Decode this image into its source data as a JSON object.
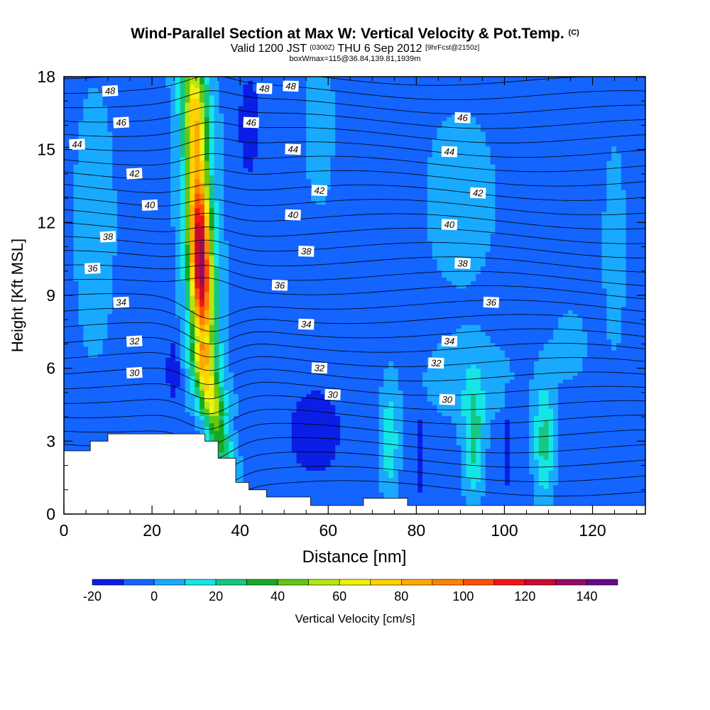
{
  "title": {
    "main": "Wind-Parallel Section at Max W: Vertical Velocity & Pot.Temp.",
    "copyright": "(C)",
    "valid_prefix": "Valid 1200 JST",
    "utc": "(0300Z)",
    "valid_date": "THU 6 Sep 2012",
    "forecast": "[9hrFcst@2150z]",
    "box": "boxWmax=115@36.84,139.81,1939m"
  },
  "chart_data": {
    "type": "heatmap",
    "xlabel": "Distance [nm]",
    "ylabel": "Height [Kft MSL]",
    "xlim": [
      0,
      132
    ],
    "ylim": [
      0,
      18
    ],
    "xticks": [
      0,
      20,
      40,
      60,
      80,
      100,
      120
    ],
    "yticks": [
      0,
      3,
      6,
      9,
      12,
      15,
      18
    ],
    "grid": false,
    "colorbar": {
      "label": "Vertical Velocity [cm/s]",
      "levels": [
        -20,
        -10,
        0,
        10,
        20,
        30,
        40,
        50,
        60,
        70,
        80,
        90,
        100,
        110,
        120,
        130,
        140,
        150
      ],
      "tick_labels": [
        "-20",
        "0",
        "20",
        "40",
        "60",
        "80",
        "100",
        "120",
        "140"
      ],
      "colors": [
        "#0a1ee6",
        "#1464ff",
        "#19aaff",
        "#14e6e6",
        "#14c882",
        "#14aa28",
        "#64c814",
        "#b4e614",
        "#f0f00a",
        "#ffd200",
        "#ffaa00",
        "#ff8200",
        "#ff5000",
        "#f01414",
        "#c80a32",
        "#960a64",
        "#640a8c"
      ]
    },
    "isentropes": {
      "name": "Pot.Temp.",
      "levels": [
        30,
        32,
        34,
        36,
        38,
        40,
        42,
        44,
        46,
        48
      ],
      "labels": [
        {
          "text": "48",
          "x": 10.5,
          "y": 17.4
        },
        {
          "text": "48",
          "x": 45.5,
          "y": 17.5
        },
        {
          "text": "48",
          "x": 51.5,
          "y": 17.6
        },
        {
          "text": "46",
          "x": 13,
          "y": 16.1
        },
        {
          "text": "46",
          "x": 42.5,
          "y": 16.1
        },
        {
          "text": "46",
          "x": 90.5,
          "y": 16.3
        },
        {
          "text": "44",
          "x": 3,
          "y": 15.2
        },
        {
          "text": "44",
          "x": 52,
          "y": 15.0
        },
        {
          "text": "44",
          "x": 87.5,
          "y": 14.9
        },
        {
          "text": "42",
          "x": 16,
          "y": 14.0
        },
        {
          "text": "42",
          "x": 58,
          "y": 13.3
        },
        {
          "text": "42",
          "x": 94,
          "y": 13.2
        },
        {
          "text": "40",
          "x": 19.5,
          "y": 12.7
        },
        {
          "text": "40",
          "x": 52,
          "y": 12.3
        },
        {
          "text": "40",
          "x": 87.5,
          "y": 11.9
        },
        {
          "text": "38",
          "x": 10,
          "y": 11.4
        },
        {
          "text": "38",
          "x": 55,
          "y": 10.8
        },
        {
          "text": "38",
          "x": 90.5,
          "y": 10.3
        },
        {
          "text": "36",
          "x": 6.5,
          "y": 10.1
        },
        {
          "text": "36",
          "x": 49,
          "y": 9.4
        },
        {
          "text": "36",
          "x": 97,
          "y": 8.7
        },
        {
          "text": "34",
          "x": 13,
          "y": 8.7
        },
        {
          "text": "34",
          "x": 55,
          "y": 7.8
        },
        {
          "text": "34",
          "x": 87.5,
          "y": 7.1
        },
        {
          "text": "32",
          "x": 16,
          "y": 7.1
        },
        {
          "text": "32",
          "x": 58,
          "y": 6.0
        },
        {
          "text": "32",
          "x": 84.5,
          "y": 6.2
        },
        {
          "text": "30",
          "x": 16,
          "y": 5.8
        },
        {
          "text": "30",
          "x": 61,
          "y": 4.9
        },
        {
          "text": "30",
          "x": 87,
          "y": 4.7
        }
      ]
    },
    "max_updraft": {
      "x": 33,
      "y": 10.5,
      "value": 115
    }
  }
}
